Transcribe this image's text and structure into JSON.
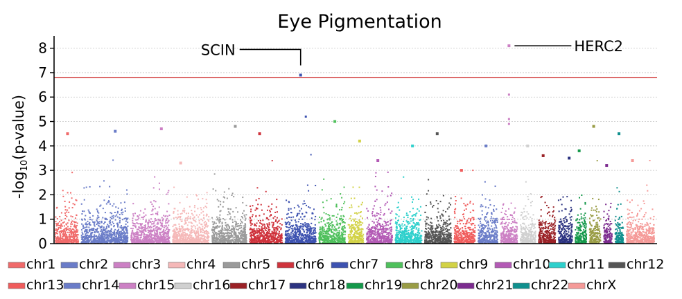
{
  "chart_data": {
    "type": "scatter",
    "subtype": "manhattan",
    "title": "Eye Pigmentation",
    "ylabel_main": "-log",
    "ylabel_sub": "10",
    "ylabel_rest": "(p-value)",
    "ylim": [
      0,
      8.5
    ],
    "yticks": [
      0,
      1,
      2,
      3,
      4,
      5,
      6,
      7,
      8
    ],
    "grid": true,
    "significance_threshold": 6.8,
    "chromosomes": [
      {
        "name": "chr1",
        "color": "#f06a6a",
        "max": 4.5
      },
      {
        "name": "chr2",
        "color": "#6a7cc8",
        "max": 4.6
      },
      {
        "name": "chr3",
        "color": "#cc80c4",
        "max": 4.7
      },
      {
        "name": "chr4",
        "color": "#f5b8b8",
        "max": 3.3
      },
      {
        "name": "chr5",
        "color": "#9a9a9a",
        "max": 4.8
      },
      {
        "name": "chr6",
        "color": "#cf333c",
        "max": 4.5
      },
      {
        "name": "chr7",
        "color": "#3d52b0",
        "max": 6.9
      },
      {
        "name": "chr8",
        "color": "#4fc05c",
        "max": 5.0
      },
      {
        "name": "chr9",
        "color": "#d2d246",
        "max": 4.2
      },
      {
        "name": "chr10",
        "color": "#b35ab5",
        "max": 3.4
      },
      {
        "name": "chr11",
        "color": "#2ed0cc",
        "max": 4.0
      },
      {
        "name": "chr12",
        "color": "#555555",
        "max": 4.5
      },
      {
        "name": "chr13",
        "color": "#f05c5c",
        "max": 3.0
      },
      {
        "name": "chr14",
        "color": "#6a7cc8",
        "max": 4.0
      },
      {
        "name": "chr15",
        "color": "#cc80c4",
        "max": 8.1
      },
      {
        "name": "chr16",
        "color": "#d0d0d0",
        "max": 4.0
      },
      {
        "name": "chr17",
        "color": "#9a2126",
        "max": 3.6
      },
      {
        "name": "chr18",
        "color": "#2c3380",
        "max": 3.5
      },
      {
        "name": "chr19",
        "color": "#14984a",
        "max": 3.8
      },
      {
        "name": "chr20",
        "color": "#999c45",
        "max": 4.8
      },
      {
        "name": "chr21",
        "color": "#7c2c8f",
        "max": 3.2
      },
      {
        "name": "chr22",
        "color": "#10908e",
        "max": 4.5
      },
      {
        "name": "chrX",
        "color": "#f59a98",
        "max": 3.4
      }
    ],
    "annotations": [
      {
        "label": "SCIN",
        "chromosome": "chr7",
        "value": 6.9
      },
      {
        "label": "HERC2",
        "chromosome": "chr15",
        "value": 8.1
      }
    ],
    "legend_position": "bottom"
  }
}
